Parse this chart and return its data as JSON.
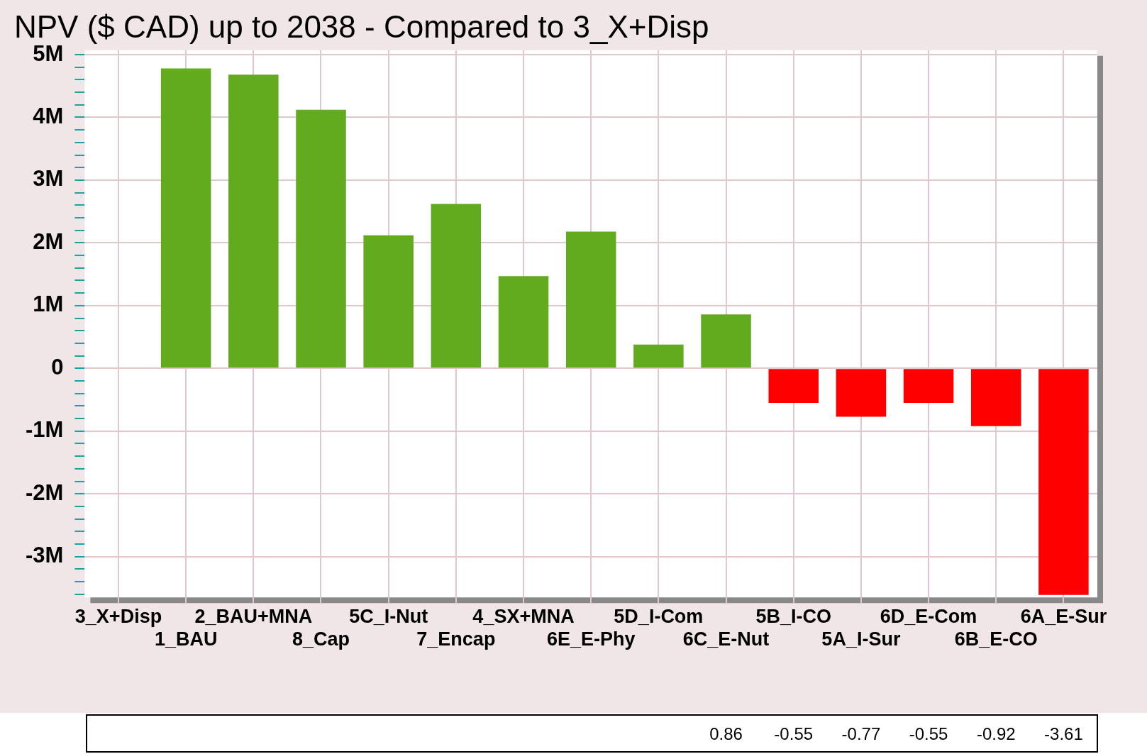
{
  "chart_data": {
    "type": "bar",
    "title": "NPV ($ CAD) up to 2038 - Compared to 3_X+Disp",
    "categories": [
      "3_X+Disp",
      "1_BAU",
      "2_BAU+MNA",
      "8_Cap",
      "5C_I-Nut",
      "7_Encap",
      "4_SX+MNA",
      "6E_E-Phy",
      "5D_I-Com",
      "6C_E-Nut",
      "5B_I-CO",
      "5A_I-Sur",
      "6D_E-Com",
      "6B_E-CO",
      "6A_E-Sur"
    ],
    "values": [
      0,
      4.78,
      4.68,
      4.12,
      2.12,
      2.62,
      1.47,
      2.18,
      0.38,
      0.86,
      -0.55,
      -0.77,
      -0.55,
      -0.92,
      -3.61
    ],
    "colors": [
      "#62aa1e",
      "#62aa1e",
      "#62aa1e",
      "#62aa1e",
      "#62aa1e",
      "#62aa1e",
      "#62aa1e",
      "#62aa1e",
      "#62aa1e",
      "#62aa1e",
      "#ff0000",
      "#ff0000",
      "#ff0000",
      "#ff0000",
      "#ff0000"
    ],
    "value_labels": [
      null,
      null,
      null,
      null,
      null,
      null,
      null,
      null,
      null,
      "0.86",
      "-0.55",
      "-0.77",
      "-0.55",
      "-0.92",
      "-3.61"
    ],
    "ylim": [
      -3.65,
      5.07
    ],
    "yticks": [
      {
        "value": -3.6,
        "label": null
      },
      {
        "value": -3.4,
        "label": null
      },
      {
        "value": -3.2,
        "label": null
      },
      {
        "value": -3,
        "label": "-3M"
      },
      {
        "value": -2.8,
        "label": null
      },
      {
        "value": -2.6,
        "label": null
      },
      {
        "value": -2.4,
        "label": null
      },
      {
        "value": -2.2,
        "label": null
      },
      {
        "value": -2,
        "label": "-2M"
      },
      {
        "value": -1.8,
        "label": null
      },
      {
        "value": -1.6,
        "label": null
      },
      {
        "value": -1.4,
        "label": null
      },
      {
        "value": -1.2,
        "label": null
      },
      {
        "value": -1,
        "label": "-1M"
      },
      {
        "value": -0.8,
        "label": null
      },
      {
        "value": -0.6,
        "label": null
      },
      {
        "value": -0.4,
        "label": null
      },
      {
        "value": -0.2,
        "label": null
      },
      0,
      {
        "value": 0.2,
        "label": null
      },
      {
        "value": 0.4,
        "label": null
      },
      {
        "value": 0.6,
        "label": null
      },
      {
        "value": 0.8,
        "label": null
      },
      {
        "value": 1,
        "label": "1M"
      },
      {
        "value": 1.2,
        "label": null
      },
      {
        "value": 1.4,
        "label": null
      },
      {
        "value": 1.6,
        "label": null
      },
      {
        "value": 1.8,
        "label": null
      },
      {
        "value": 2,
        "label": "2M"
      },
      {
        "value": 2.2,
        "label": null
      },
      {
        "value": 2.4,
        "label": null
      },
      {
        "value": 2.6,
        "label": null
      },
      {
        "value": 2.8,
        "label": null
      },
      {
        "value": 3,
        "label": "3M"
      },
      {
        "value": 3.2,
        "label": null
      },
      {
        "value": 3.4,
        "label": null
      },
      {
        "value": 3.6,
        "label": null
      },
      {
        "value": 3.8,
        "label": null
      },
      {
        "value": 4,
        "label": "4M"
      },
      {
        "value": 4.2,
        "label": null
      },
      {
        "value": 4.4,
        "label": null
      },
      {
        "value": 4.6,
        "label": null
      },
      {
        "value": 4.8,
        "label": null
      },
      {
        "value": 5,
        "label": "5M"
      }
    ],
    "grid": true,
    "legend": false
  }
}
